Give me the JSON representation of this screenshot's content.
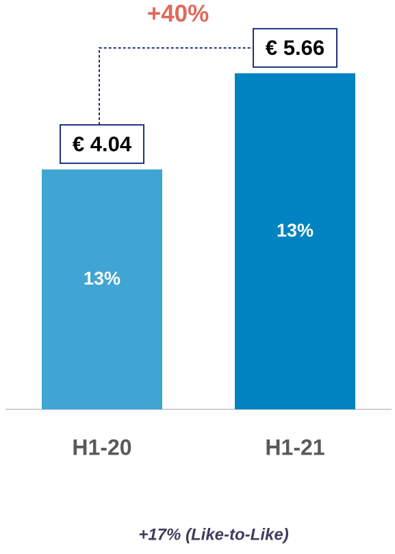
{
  "chart_data": {
    "type": "bar",
    "categories": [
      "H1-20",
      "H1-21"
    ],
    "values": [
      4.04,
      5.66
    ],
    "value_labels": [
      "€ 4.04",
      "€ 5.66"
    ],
    "inner_labels": [
      "13%",
      "13%"
    ],
    "colors": [
      "#41a5d3",
      "#0083c0"
    ],
    "change_annotation": "+40%",
    "footnote": "+17% (Like-to-Like)"
  }
}
